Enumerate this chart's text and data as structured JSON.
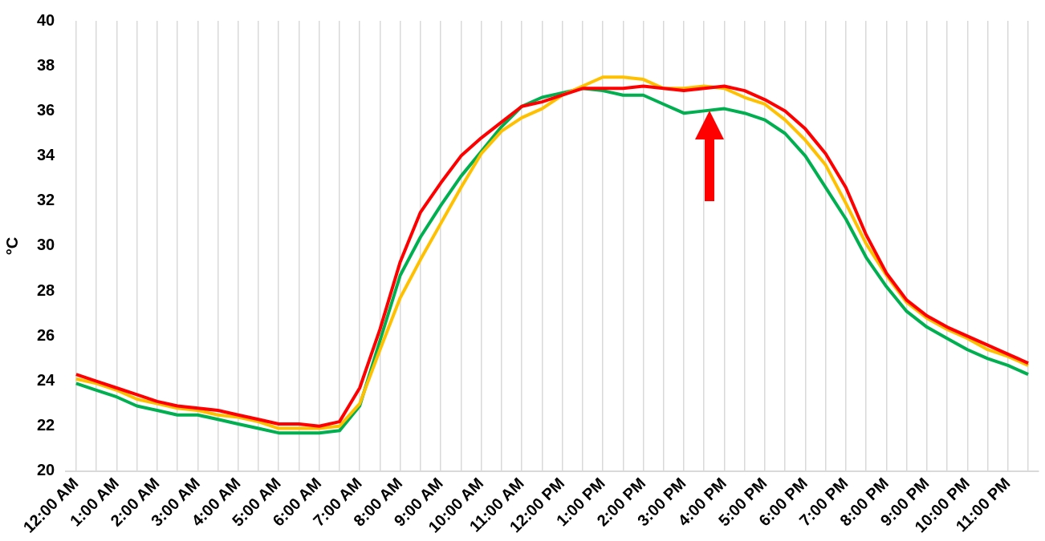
{
  "chart_data": {
    "type": "line",
    "ylabel": "°C",
    "categories": [
      "12:00 AM",
      null,
      "1:00 AM",
      null,
      "2:00 AM",
      null,
      "3:00 AM",
      null,
      "4:00 AM",
      null,
      "5:00 AM",
      null,
      "6:00 AM",
      null,
      "7:00 AM",
      null,
      "8:00 AM",
      null,
      "9:00 AM",
      null,
      "10:00 AM",
      null,
      "11:00 AM",
      null,
      "12:00 PM",
      null,
      "1:00 PM",
      null,
      "2:00 PM",
      null,
      "3:00 PM",
      null,
      "4:00 PM",
      null,
      "5:00 PM",
      null,
      "6:00 PM",
      null,
      "7:00 PM",
      null,
      "8:00 PM",
      null,
      "9:00 PM",
      null,
      "10:00 PM",
      null,
      "11:00 PM",
      null
    ],
    "series": [
      {
        "color": "#ff0000",
        "values": [
          24.3,
          24.0,
          23.7,
          23.4,
          23.1,
          22.9,
          22.8,
          22.7,
          22.5,
          22.3,
          22.1,
          22.1,
          22.0,
          22.2,
          23.7,
          26.3,
          29.3,
          31.5,
          32.8,
          34.0,
          34.8,
          35.5,
          36.2,
          36.4,
          36.7,
          37.0,
          37.0,
          37.0,
          37.1,
          37.0,
          36.9,
          37.0,
          37.1,
          36.9,
          36.5,
          36.0,
          35.2,
          34.1,
          32.6,
          30.5,
          28.8,
          27.6,
          26.9,
          26.4,
          26.0,
          25.6,
          25.2,
          24.8
        ]
      },
      {
        "color": "#ffc000",
        "values": [
          24.1,
          23.9,
          23.6,
          23.2,
          23.0,
          22.8,
          22.7,
          22.5,
          22.4,
          22.2,
          21.9,
          21.9,
          21.9,
          22.0,
          23.0,
          25.4,
          27.7,
          29.4,
          31.0,
          32.6,
          34.1,
          35.1,
          35.7,
          36.1,
          36.7,
          37.1,
          37.5,
          37.5,
          37.4,
          37.0,
          37.0,
          37.1,
          37.0,
          36.6,
          36.3,
          35.6,
          34.7,
          33.6,
          31.9,
          30.1,
          28.7,
          27.5,
          26.8,
          26.3,
          25.9,
          25.4,
          25.1,
          24.7
        ]
      },
      {
        "color": "#00b050",
        "values": [
          23.9,
          23.6,
          23.3,
          22.9,
          22.7,
          22.5,
          22.5,
          22.3,
          22.1,
          21.9,
          21.7,
          21.7,
          21.7,
          21.8,
          22.9,
          25.8,
          28.7,
          30.4,
          31.8,
          33.1,
          34.2,
          35.3,
          36.2,
          36.6,
          36.8,
          37.0,
          36.9,
          36.7,
          36.7,
          36.3,
          35.9,
          36.0,
          36.1,
          35.9,
          35.6,
          35.0,
          34.0,
          32.6,
          31.2,
          29.5,
          28.2,
          27.1,
          26.4,
          25.9,
          25.4,
          25.0,
          24.7,
          24.3
        ]
      }
    ],
    "ylim": [
      20,
      40
    ],
    "yticks": [
      20,
      22,
      24,
      26,
      28,
      30,
      32,
      34,
      36,
      38,
      40
    ],
    "grid": "x",
    "marker": "none",
    "line_style": "solid",
    "legend": false
  }
}
